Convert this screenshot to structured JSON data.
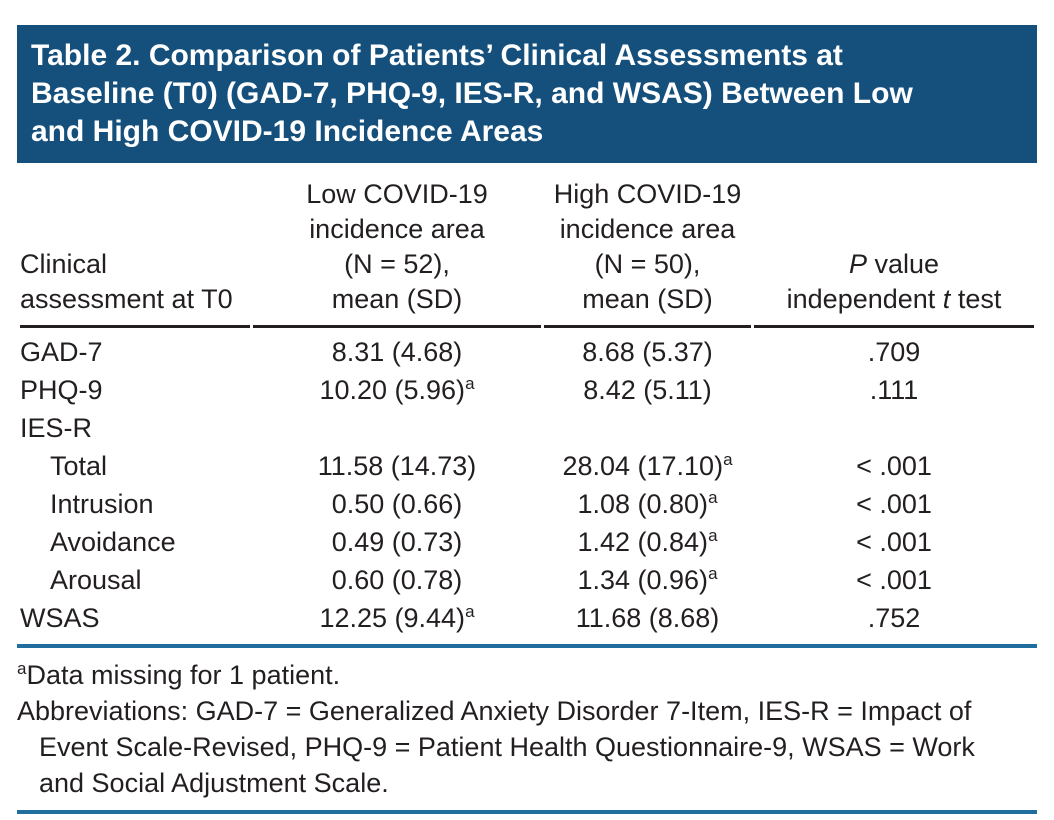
{
  "title": "Table 2. Comparison of Patients’ Clinical Assessments at\nBaseline (T0) (GAD-7, PHQ-9, IES-R, and WSAS) Between Low\nand High COVID-19 Incidence Areas",
  "colors": {
    "title_bg": "#15507D",
    "rule_blue": "#1F6E9E",
    "text": "#231F20"
  },
  "table": {
    "headers": {
      "col1": "Clinical\nassessment at T0",
      "col2": "Low COVID-19\nincidence area\n(N = 52),\nmean (SD)",
      "col3": "High COVID-19\nincidence area\n(N = 50),\nmean (SD)",
      "col4_p_italic": "P",
      "col4_p_rest": " value",
      "col4_t_pre": "independent ",
      "col4_t_italic": "t",
      "col4_t_post": " test"
    },
    "rows": [
      {
        "label": "GAD-7",
        "indent": false,
        "low": "8.31 (4.68)",
        "low_sup": "",
        "high": "8.68 (5.37)",
        "high_sup": "",
        "p": ".709"
      },
      {
        "label": "PHQ-9",
        "indent": false,
        "low": "10.20 (5.96)",
        "low_sup": "a",
        "high": "8.42 (5.11)",
        "high_sup": "",
        "p": ".111"
      },
      {
        "label": "IES-R",
        "indent": false,
        "low": "",
        "low_sup": "",
        "high": "",
        "high_sup": "",
        "p": ""
      },
      {
        "label": "Total",
        "indent": true,
        "low": "11.58 (14.73)",
        "low_sup": "",
        "high": "28.04 (17.10)",
        "high_sup": "a",
        "p": "< .001"
      },
      {
        "label": "Intrusion",
        "indent": true,
        "low": "0.50 (0.66)",
        "low_sup": "",
        "high": "1.08 (0.80)",
        "high_sup": "a",
        "p": "< .001"
      },
      {
        "label": "Avoidance",
        "indent": true,
        "low": "0.49 (0.73)",
        "low_sup": "",
        "high": "1.42 (0.84)",
        "high_sup": "a",
        "p": "< .001"
      },
      {
        "label": "Arousal",
        "indent": true,
        "low": "0.60 (0.78)",
        "low_sup": "",
        "high": "1.34 (0.96)",
        "high_sup": "a",
        "p": "< .001"
      },
      {
        "label": "WSAS",
        "indent": false,
        "low": "12.25 (9.44)",
        "low_sup": "a",
        "high": "11.68 (8.68)",
        "high_sup": "",
        "p": ".752"
      }
    ]
  },
  "footnotes": {
    "note_sup": "a",
    "note_text": "Data missing for 1 patient.",
    "abbrev_lines": [
      "Abbreviations: GAD-7 = Generalized Anxiety Disorder 7-Item, IES-R = Impact of",
      "Event Scale-Revised, PHQ-9 = Patient Health Questionnaire-9, WSAS = Work",
      "and Social Adjustment Scale."
    ]
  }
}
